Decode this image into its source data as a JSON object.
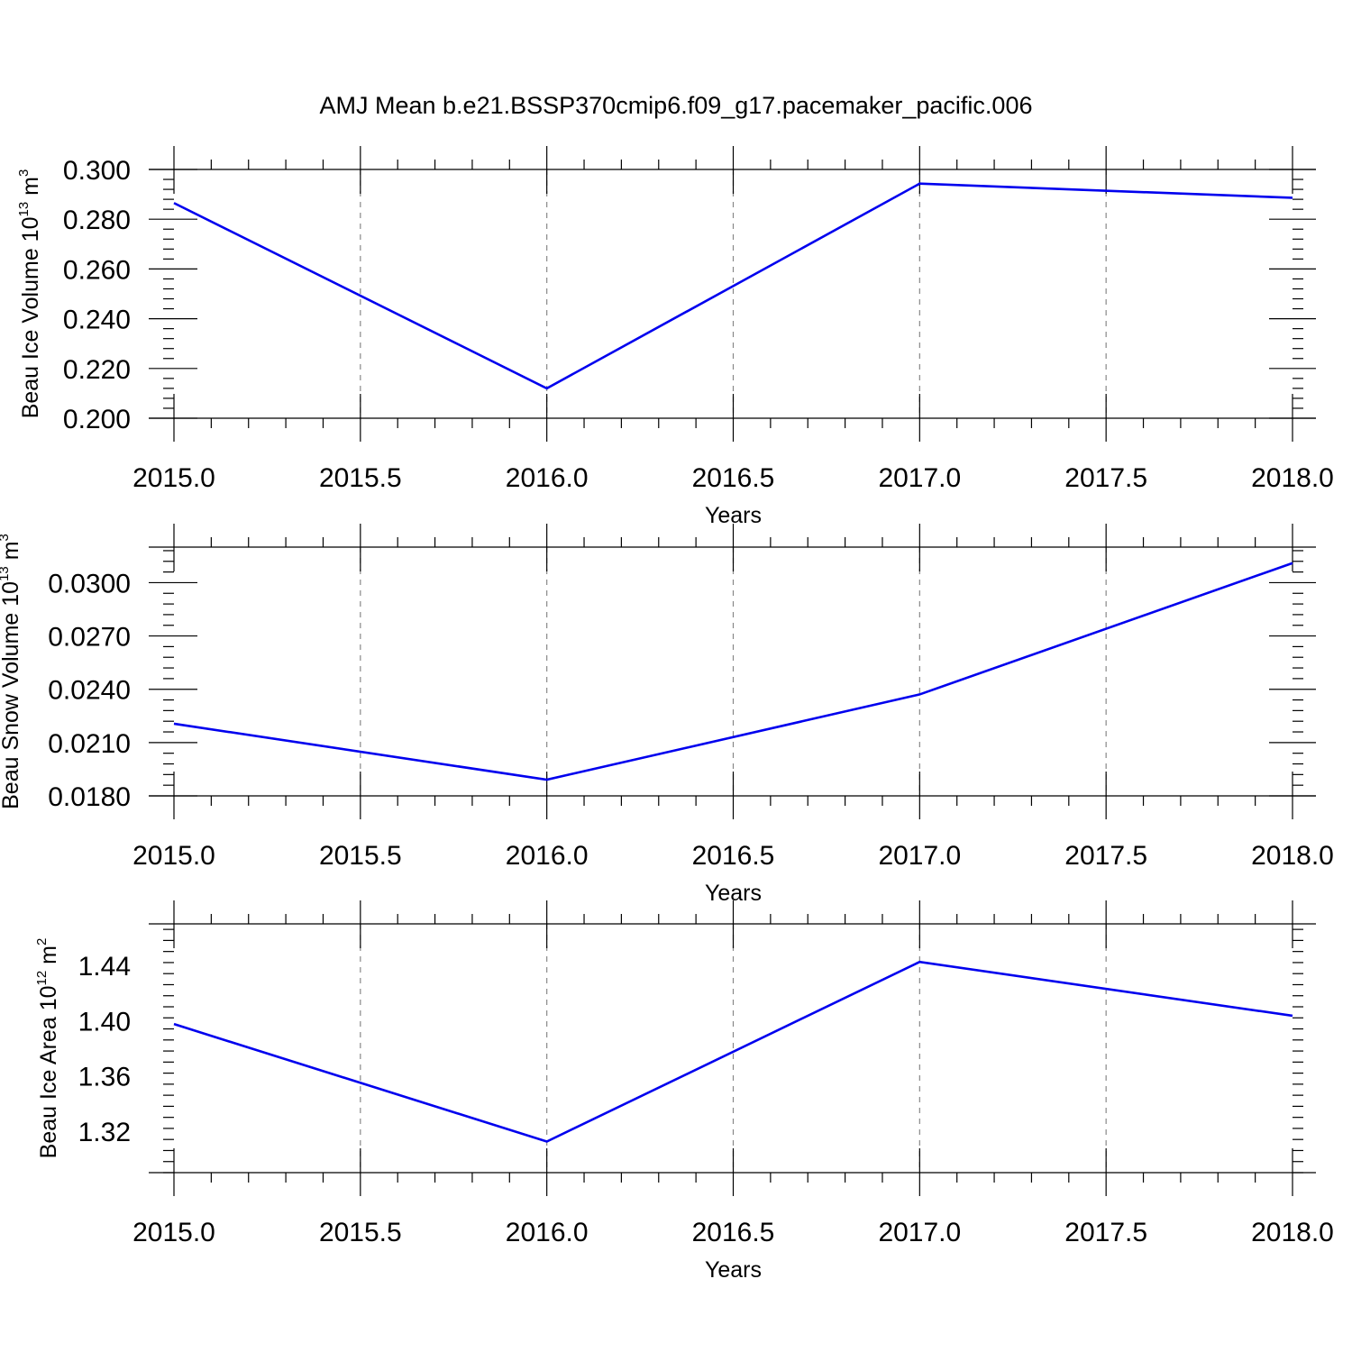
{
  "chart_data": [
    {
      "type": "line",
      "title": "AMJ Mean b.e21.BSSP370cmip6.f09_g17.pacemaker_pacific.006",
      "xlabel": "Years",
      "ylabel": {
        "base": "Beau Ice Volume 10",
        "exp": "13",
        "unit": " m",
        "unit_exp": "3"
      },
      "xlim": [
        2015.0,
        2018.0
      ],
      "ylim": [
        0.2,
        0.3
      ],
      "xticks": [
        2015.0,
        2015.5,
        2016.0,
        2016.5,
        2017.0,
        2017.5,
        2018.0
      ],
      "xtick_labels": [
        "2015.0",
        "2015.5",
        "2016.0",
        "2016.5",
        "2017.0",
        "2017.5",
        "2018.0"
      ],
      "yticks": [
        0.2,
        0.22,
        0.24,
        0.26,
        0.28,
        0.3
      ],
      "ytick_labels": [
        "0.200",
        "0.220",
        "0.240",
        "0.260",
        "0.280",
        "0.300"
      ],
      "y_minor_step": 0.004,
      "x_minor_step": 0.1,
      "grid": "vertical dashed at labeled x ticks",
      "series": [
        {
          "color": "#0000ee",
          "x": [
            2015,
            2016,
            2017,
            2018
          ],
          "y": [
            0.2865,
            0.212,
            0.2943,
            0.2886
          ]
        }
      ]
    },
    {
      "type": "line",
      "xlabel": "Years",
      "ylabel": {
        "base": "Beau Snow Volume 10",
        "exp": "13",
        "unit": " m",
        "unit_exp": "3"
      },
      "xlim": [
        2015.0,
        2018.0
      ],
      "ylim": [
        0.018,
        0.032
      ],
      "xticks": [
        2015.0,
        2015.5,
        2016.0,
        2016.5,
        2017.0,
        2017.5,
        2018.0
      ],
      "xtick_labels": [
        "2015.0",
        "2015.5",
        "2016.0",
        "2016.5",
        "2017.0",
        "2017.5",
        "2018.0"
      ],
      "yticks": [
        0.018,
        0.021,
        0.024,
        0.027,
        0.03
      ],
      "ytick_labels": [
        "0.0180",
        "0.0210",
        "0.0240",
        "0.0270",
        "0.0300"
      ],
      "y_minor_step": 0.0006,
      "x_minor_step": 0.1,
      "grid": "vertical dashed at labeled x ticks",
      "series": [
        {
          "color": "#0000ee",
          "x": [
            2015,
            2016,
            2017,
            2018
          ],
          "y": [
            0.02206,
            0.01891,
            0.02371,
            0.0311
          ]
        }
      ]
    },
    {
      "type": "line",
      "xlabel": "Years",
      "ylabel": {
        "base": "Beau Ice Area 10",
        "exp": "12",
        "unit": " m",
        "unit_exp": "2"
      },
      "xlim": [
        2015.0,
        2018.0
      ],
      "ylim": [
        1.29,
        1.47
      ],
      "xticks": [
        2015.0,
        2015.5,
        2016.0,
        2016.5,
        2017.0,
        2017.5,
        2018.0
      ],
      "xtick_labels": [
        "2015.0",
        "2015.5",
        "2016.0",
        "2016.5",
        "2017.0",
        "2017.5",
        "2018.0"
      ],
      "yticks": [
        1.32,
        1.36,
        1.4,
        1.44
      ],
      "ytick_labels": [
        "1.32",
        "1.36",
        "1.40",
        "1.44"
      ],
      "y_minor_step": 0.008,
      "x_minor_step": 0.1,
      "grid": "vertical dashed at labeled x ticks",
      "series": [
        {
          "color": "#0000ee",
          "x": [
            2015,
            2016,
            2017,
            2018
          ],
          "y": [
            1.3975,
            1.3125,
            1.4425,
            1.4035
          ]
        }
      ]
    }
  ]
}
